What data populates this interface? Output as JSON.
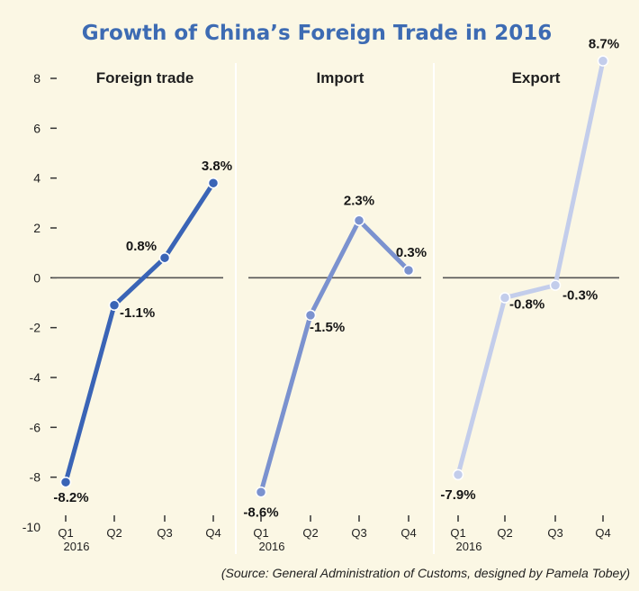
{
  "chart_data": {
    "type": "line",
    "title": "Growth of China’s Foreign Trade in 2016",
    "source": "(Source: General Administration of Customs, designed by Pamela Tobey)",
    "categories": [
      "Q1",
      "Q2",
      "Q3",
      "Q4"
    ],
    "category_sublabel": "2016",
    "ylim": [
      -10,
      8
    ],
    "yticks": [
      "8",
      "6",
      "4",
      "2",
      "0",
      "-2",
      "-4",
      "-6",
      "-8",
      "-10"
    ],
    "grid": false,
    "series": [
      {
        "name": "Foreign trade",
        "values": [
          -8.2,
          -1.1,
          0.8,
          3.8
        ],
        "labels": [
          "-8.2%",
          "-1.1%",
          "0.8%",
          "3.8%"
        ],
        "color": "#3a64b6"
      },
      {
        "name": "Import",
        "values": [
          -8.6,
          -1.5,
          2.3,
          0.3
        ],
        "labels": [
          "-8.6%",
          "-1.5%",
          "2.3%",
          "0.3%"
        ],
        "color": "#7b92cf"
      },
      {
        "name": "Export",
        "values": [
          -7.9,
          -0.8,
          -0.3,
          8.7
        ],
        "labels": [
          "-7.9%",
          "-0.8%",
          "-0.3%",
          "8.7%"
        ],
        "color": "#c3cdeb"
      }
    ]
  }
}
